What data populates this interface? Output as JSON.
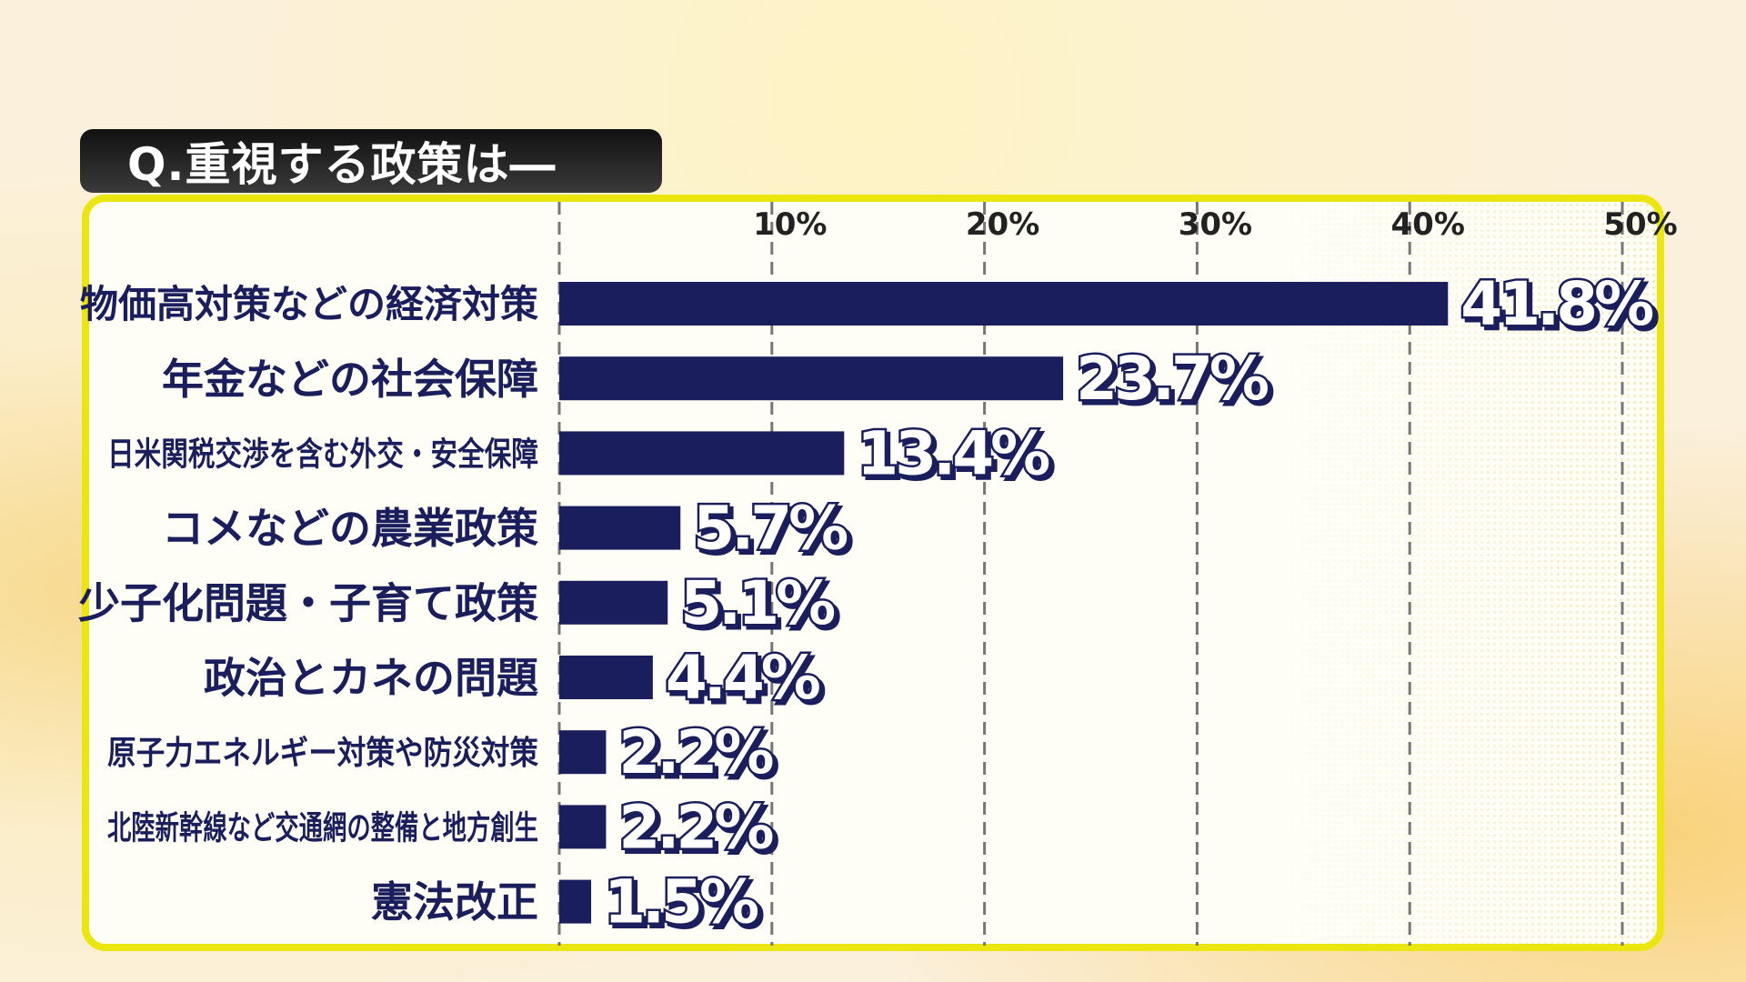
{
  "title": "Q.重視する政策は―",
  "colors": {
    "bar": "#1a1e5c",
    "frame": "#ebe510",
    "title_bg": "#1e1e1e"
  },
  "chart_data": {
    "type": "bar",
    "orientation": "horizontal",
    "title": "Q.重視する政策は―",
    "categories": [
      "物価高対策などの経済対策",
      "年金などの社会保障",
      "日米関税交渉を含む外交・安全保障",
      "コメなどの農業政策",
      "少子化問題・子育て政策",
      "政治とカネの問題",
      "原子力エネルギー対策や防災対策",
      "北陸新幹線など交通網の整備と地方創生",
      "憲法改正"
    ],
    "values": [
      41.8,
      23.7,
      13.4,
      5.7,
      5.1,
      4.4,
      2.2,
      2.2,
      1.5
    ],
    "data_labels": [
      "41.8%",
      "23.7%",
      "13.4%",
      "5.7%",
      "5.1%",
      "4.4%",
      "2.2%",
      "2.2%",
      "1.5%"
    ],
    "xlim": [
      0,
      50
    ],
    "ticks": [
      10,
      20,
      30,
      40,
      50
    ],
    "tick_labels": [
      "10%",
      "20%",
      "30%",
      "40%",
      "50%"
    ],
    "grid": "vertical dashed",
    "xlabel": "",
    "ylabel": ""
  }
}
